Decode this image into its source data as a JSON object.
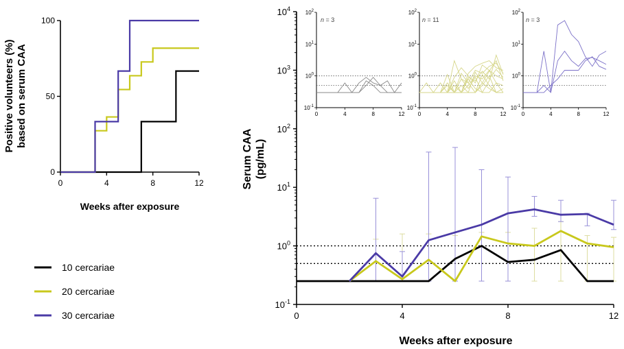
{
  "colors": {
    "c10": "#000000",
    "c20": "#c8c81c",
    "c30": "#4a3aa6"
  },
  "legend": [
    {
      "label": "10 cercariae",
      "color": "#000000"
    },
    {
      "label": "20 cercariae",
      "color": "#c8c81c"
    },
    {
      "label": "30 cercariae",
      "color": "#4a3aa6"
    }
  ],
  "chart_data": [
    {
      "type": "line",
      "subtype": "step",
      "ylabel_line1": "Positive volunteers (%)",
      "ylabel_line2": "based on serum CAA",
      "xlabel": "Weeks after exposure",
      "xlim": [
        0,
        12
      ],
      "ylim": [
        0,
        100
      ],
      "xticks": [
        "0",
        "4",
        "8",
        "12"
      ],
      "yticks": [
        "0",
        "50",
        "100"
      ],
      "series": [
        {
          "name": "10 cercariae",
          "points": [
            [
              0,
              0
            ],
            [
              7,
              0
            ],
            [
              7,
              33.3
            ],
            [
              10,
              33.3
            ],
            [
              10,
              66.7
            ],
            [
              12,
              66.7
            ]
          ]
        },
        {
          "name": "20 cercariae",
          "points": [
            [
              0,
              0
            ],
            [
              3,
              0
            ],
            [
              3,
              27.3
            ],
            [
              4,
              27.3
            ],
            [
              4,
              36.4
            ],
            [
              5,
              36.4
            ],
            [
              5,
              54.5
            ],
            [
              6,
              54.5
            ],
            [
              6,
              63.6
            ],
            [
              7,
              63.6
            ],
            [
              7,
              72.7
            ],
            [
              8,
              72.7
            ],
            [
              8,
              81.8
            ],
            [
              12,
              81.8
            ]
          ]
        },
        {
          "name": "30 cercariae",
          "points": [
            [
              0,
              0
            ],
            [
              3,
              0
            ],
            [
              3,
              33.3
            ],
            [
              5,
              33.3
            ],
            [
              5,
              66.7
            ],
            [
              6,
              66.7
            ],
            [
              6,
              100
            ],
            [
              12,
              100
            ]
          ]
        }
      ]
    },
    {
      "type": "line",
      "yscale": "log",
      "ylabel_line1": "Serum CAA",
      "ylabel_line2": "(pg/mL)",
      "xlabel": "Weeks after exposure",
      "xlim": [
        0,
        12
      ],
      "ylim": [
        0.1,
        10000
      ],
      "xticks": [
        "0",
        "4",
        "8",
        "12"
      ],
      "ytick_base": [
        "10",
        "10",
        "10",
        "10",
        "10",
        "10"
      ],
      "ytick_exp": [
        "-1",
        "0",
        "1",
        "2",
        "3",
        "4"
      ],
      "reference_lines": [
        1.0,
        0.5
      ],
      "series": [
        {
          "name": "10 cercariae",
          "x": [
            0,
            1,
            2,
            3,
            4,
            5,
            6,
            7,
            8,
            9,
            10,
            11,
            12
          ],
          "y": [
            0.25,
            0.25,
            0.25,
            0.25,
            0.25,
            0.25,
            0.6,
            1.0,
            0.53,
            0.58,
            0.85,
            0.25,
            0.25
          ]
        },
        {
          "name": "20 cercariae",
          "x": [
            2,
            3,
            4,
            5,
            6,
            7,
            8,
            9,
            10,
            11,
            12
          ],
          "y": [
            0.25,
            0.55,
            0.27,
            0.58,
            0.25,
            1.45,
            1.1,
            1.0,
            1.8,
            1.1,
            0.95
          ],
          "err_lo": [
            null,
            0.25,
            0.25,
            0.25,
            0.25,
            0.25,
            0.25,
            0.25,
            0.25,
            0.25,
            0.25
          ],
          "err_hi": [
            null,
            1.3,
            1.6,
            1.6,
            1.5,
            1.7,
            1.7,
            2.0,
            2.6,
            1.5,
            1.4
          ]
        },
        {
          "name": "30 cercariae",
          "x": [
            2,
            3,
            4,
            5,
            6,
            7,
            8,
            9,
            10,
            11,
            12
          ],
          "y": [
            0.25,
            0.75,
            0.3,
            1.25,
            1.7,
            2.3,
            3.6,
            4.2,
            3.4,
            3.5,
            2.3
          ],
          "err_lo": [
            null,
            0.25,
            0.25,
            0.25,
            0.25,
            0.25,
            0.25,
            3.2,
            2.6,
            2.2,
            1.9
          ],
          "err_hi": [
            null,
            6.5,
            0.8,
            40,
            48,
            20,
            15,
            7,
            6,
            3.6,
            6
          ]
        }
      ]
    },
    {
      "type": "line",
      "yscale": "log",
      "inset": true,
      "annotation_prefix": "n",
      "annotation_value": "= 3",
      "xlim": [
        0,
        12
      ],
      "ylim": [
        0.1,
        100
      ],
      "xticks": [
        "0",
        "4",
        "8",
        "12"
      ],
      "ytick_base": [
        "10",
        "10",
        "10",
        "10"
      ],
      "ytick_exp": [
        "-1",
        "0",
        "1",
        "2"
      ],
      "reference_lines": [
        1.0,
        0.5
      ],
      "color": "#888888",
      "series": [
        {
          "x": [
            0,
            1,
            2,
            3,
            4,
            5,
            6,
            7,
            8,
            9,
            10,
            11,
            12
          ],
          "y": [
            0.3,
            0.3,
            0.3,
            0.3,
            0.6,
            0.3,
            0.3,
            0.7,
            0.5,
            0.3,
            0.3,
            0.3,
            0.3
          ]
        },
        {
          "x": [
            0,
            1,
            2,
            3,
            4,
            5,
            6,
            7,
            8,
            9,
            10,
            11,
            12
          ],
          "y": [
            0.3,
            0.3,
            0.3,
            0.3,
            0.3,
            0.3,
            0.6,
            0.9,
            0.6,
            0.5,
            0.7,
            0.3,
            0.6
          ]
        },
        {
          "x": [
            0,
            1,
            2,
            3,
            4,
            5,
            6,
            7,
            8,
            9,
            10,
            11,
            12
          ],
          "y": [
            0.3,
            0.3,
            0.3,
            0.3,
            0.3,
            0.3,
            0.3,
            0.5,
            0.9,
            0.5,
            0.3,
            0.3,
            0.3
          ]
        }
      ]
    },
    {
      "type": "line",
      "yscale": "log",
      "inset": true,
      "annotation_prefix": "n",
      "annotation_value": "= 11",
      "xlim": [
        0,
        12
      ],
      "ylim": [
        0.1,
        100
      ],
      "xticks": [
        "0",
        "4",
        "8",
        "12"
      ],
      "ytick_base": [
        "10",
        "10",
        "10",
        "10"
      ],
      "ytick_exp": [
        "-1",
        "0",
        "1",
        "2"
      ],
      "reference_lines": [
        1.0,
        0.5
      ],
      "color": "#d6d68a",
      "series": [
        {
          "x": [
            0,
            1,
            2,
            3,
            4,
            5,
            6,
            7,
            8,
            9,
            10,
            11,
            12
          ],
          "y": [
            0.3,
            0.3,
            0.3,
            0.3,
            0.3,
            0.7,
            0.3,
            1.2,
            2,
            2.5,
            3,
            1.8,
            1.5
          ]
        },
        {
          "x": [
            0,
            1,
            2,
            3,
            4,
            5,
            6,
            7,
            8,
            9,
            10,
            11,
            12
          ],
          "y": [
            0.3,
            0.3,
            0.3,
            0.6,
            0.3,
            0.3,
            0.8,
            0.6,
            1.5,
            1.2,
            2,
            2.5,
            1.2
          ]
        },
        {
          "x": [
            0,
            1,
            2,
            3,
            4,
            5,
            6,
            7,
            8,
            9,
            10,
            11,
            12
          ],
          "y": [
            0.3,
            0.3,
            0.3,
            0.3,
            0.6,
            0.3,
            0.3,
            0.9,
            0.7,
            1.4,
            0.8,
            1.6,
            0.9
          ]
        },
        {
          "x": [
            0,
            1,
            2,
            3,
            4,
            5,
            6,
            7,
            8,
            9,
            10,
            11,
            12
          ],
          "y": [
            0.3,
            0.3,
            0.3,
            0.3,
            0.3,
            0.9,
            1.8,
            1,
            0.6,
            2.2,
            1.5,
            0.6,
            0.5
          ]
        },
        {
          "x": [
            0,
            1,
            2,
            3,
            4,
            5,
            6,
            7,
            8,
            9,
            10,
            11,
            12
          ],
          "y": [
            0.3,
            0.3,
            0.3,
            0.3,
            0.3,
            0.3,
            0.3,
            0.5,
            1,
            0.8,
            1.5,
            1,
            0.8
          ]
        },
        {
          "x": [
            0,
            1,
            2,
            3,
            4,
            5,
            6,
            7,
            8,
            9,
            10,
            11,
            12
          ],
          "y": [
            0.3,
            0.6,
            0.3,
            0.3,
            0.3,
            0.5,
            0.3,
            0.3,
            0.3,
            0.6,
            0.4,
            0.3,
            0.3
          ]
        },
        {
          "x": [
            0,
            1,
            2,
            3,
            4,
            5,
            6,
            7,
            8,
            9,
            10,
            11,
            12
          ],
          "y": [
            0.3,
            0.3,
            0.3,
            0.3,
            1.1,
            0.3,
            0.3,
            0.3,
            1.3,
            0.6,
            1.4,
            3,
            0.7
          ]
        },
        {
          "x": [
            0,
            1,
            2,
            3,
            4,
            5,
            6,
            7,
            8,
            9,
            10,
            11,
            12
          ],
          "y": [
            0.3,
            0.3,
            0.3,
            0.3,
            0.3,
            3,
            0.8,
            0.4,
            0.9,
            0.3,
            0.7,
            4.5,
            1.1
          ]
        },
        {
          "x": [
            0,
            1,
            2,
            3,
            4,
            5,
            6,
            7,
            8,
            9,
            10,
            11,
            12
          ],
          "y": [
            0.3,
            0.3,
            0.3,
            0.3,
            0.3,
            0.3,
            1.2,
            0.6,
            0.3,
            1.1,
            0.5,
            0.3,
            0.4
          ]
        },
        {
          "x": [
            0,
            1,
            2,
            3,
            4,
            5,
            6,
            7,
            8,
            9,
            10,
            11,
            12
          ],
          "y": [
            0.3,
            0.3,
            0.3,
            0.3,
            0.5,
            0.3,
            0.3,
            0.8,
            0.4,
            0.3,
            0.3,
            0.6,
            0.3
          ]
        },
        {
          "x": [
            0,
            1,
            2,
            3,
            4,
            5,
            6,
            7,
            8,
            9,
            10,
            11,
            12
          ],
          "y": [
            0.3,
            0.3,
            0.3,
            0.3,
            0.3,
            0.3,
            0.5,
            0.3,
            0.3,
            0.5,
            1,
            0.3,
            0.3
          ]
        }
      ]
    },
    {
      "type": "line",
      "yscale": "log",
      "inset": true,
      "annotation_prefix": "n",
      "annotation_value": "= 3",
      "xlim": [
        0,
        12
      ],
      "ylim": [
        0.1,
        100
      ],
      "xticks": [
        "0",
        "4",
        "8",
        "12"
      ],
      "ytick_base": [
        "10",
        "10",
        "10",
        "10"
      ],
      "ytick_exp": [
        "-1",
        "0",
        "1",
        "2"
      ],
      "reference_lines": [
        1.0,
        0.5
      ],
      "color": "#7b70c8",
      "series": [
        {
          "x": [
            0,
            1,
            2,
            3,
            4,
            5,
            6,
            7,
            8,
            9,
            10,
            11,
            12
          ],
          "y": [
            0.3,
            0.3,
            0.3,
            6,
            0.3,
            40,
            55,
            20,
            12,
            4,
            2,
            4.5,
            6
          ]
        },
        {
          "x": [
            0,
            1,
            2,
            3,
            4,
            5,
            6,
            7,
            8,
            9,
            10,
            11,
            12
          ],
          "y": [
            0.3,
            0.3,
            0.3,
            0.5,
            0.3,
            3,
            6,
            3,
            2,
            3.5,
            3.8,
            3,
            2.3
          ]
        },
        {
          "x": [
            0,
            1,
            2,
            3,
            4,
            5,
            6,
            7,
            8,
            9,
            10,
            11,
            12
          ],
          "y": [
            0.3,
            0.3,
            0.3,
            0.3,
            0.5,
            0.8,
            1.5,
            1.5,
            1.5,
            3,
            4,
            2,
            1.6
          ]
        }
      ]
    }
  ]
}
